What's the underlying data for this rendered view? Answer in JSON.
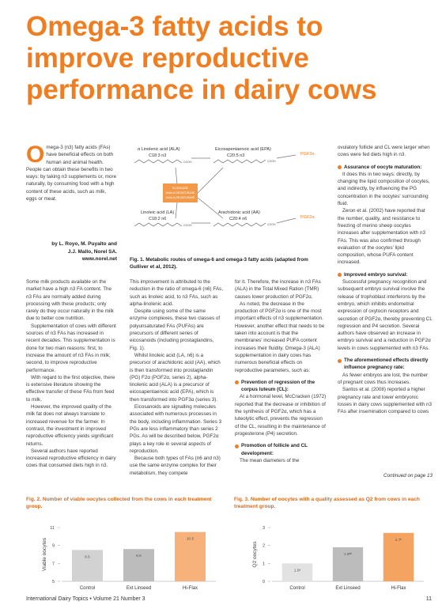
{
  "title": "Omega-3 fatty acids to improve reproductive performance in dairy cows",
  "intro": {
    "drop_cap": "O",
    "text": "mega-3 (n3) fatty acids (FAs) have beneficial effects on both human and animal health. People can obtain these benefits in two ways: by taking n3 supplements or, more naturally, by consuming food with a high content of these acids, such as milk, eggs or meat."
  },
  "authors": [
    "by L. Royo, M. Puyalto and",
    "J.J. Mallo, Norel SA.",
    "www.norel.net"
  ],
  "columns": [
    [
      {
        "text": "Some milk products available on the market have a high n3 FA content. The n3 FAs are normally added during processing with these products; only rarely do they occur naturally in the milk due to better cow nutrition."
      },
      {
        "text": "Supplementation of cows with different sources of n3 FAs has increased in recent decades. This supplementation is done for two main reasons: first, to increase the amount of n3 FAs in milk; second, to improve reproductive performance."
      },
      {
        "text": "With regard to the first objective, there is extensive literature showing the effective transfer of these FAs from feed to milk."
      },
      {
        "text": "However, the improved quality of the milk fat does not always translate to increased revenue for the farmer. In contrast, the investment in improved reproductive efficiency yields significant returns."
      },
      {
        "text": "Several authors have reported increased reproductive efficiency in dairy cows that consumed diets high in n3."
      }
    ],
    [
      {
        "text": "This improvement is attributed to the reduction in the ratio of omega-6 (n6) FAs, such as linoleic acid, to n3 FAs, such as alpha-linolenic acid."
      },
      {
        "text": "Despite using some of the same enzyme complexes, these two classes of polyunsaturated FAs (PUFAs) are precursors of different series of eicosanoids (including prostaglandins, Fig. 1)."
      },
      {
        "text": "Whilst linoleic acid (LA, n6) is a precursor of arachidonic acid (AA), which is then transformed into prostaglandin (PG) F2α (PGF2α, series 2), alpha-linolenic acid (ALA) is a precursor of eicosapentaenoic acid (EPA), which is then transformed into PGF3α (series 3)."
      },
      {
        "text": "Eicosanoids are signalling molecules associated with numerous processes in the body, including inflammation. Series 3 PGs are less inflammatory than series 2 PGs. As will be described below, PGF2α plays a key role in several aspects of reproduction."
      },
      {
        "text": "Because both types of FAs (n6 and n3) use the same enzyme complex for their metabolism, they compete"
      }
    ],
    [
      {
        "text": "for it. Therefore, the increase in n3 FAs (ALA) in the Total Mixed Ration (TMR) causes lower production of PGF2α."
      },
      {
        "text": "As noted, the decrease in the production of PGF2α is one of the most important effects of n3 supplementation. However, another effect that needs to be taken into account is that the membranes' increased PUFA content increases their fluidity. Omega-3 (ALA) supplementation in dairy cows has numerous beneficial effects on reproductive parameters, such as:"
      },
      {
        "heading": "Prevention of regression of the corpus luteum (CL):"
      },
      {
        "text": "At a hormonal level, McCracken (1972) reported that the decrease or inhibition of the synthesis of PGF2α, which has a luteolytic effect, prevents the regression of the CL, resulting in the maintenance of progesterone (P4) secretion."
      },
      {
        "heading": "Promotion of follicle and CL development:"
      },
      {
        "text": "The mean diameters of the"
      }
    ],
    [
      {
        "text": "ovulatory follicle and CL were larger when cows were fed diets high in n3."
      },
      {
        "heading": "Assurance of oocyte maturation:"
      },
      {
        "text": "It does this in two ways: directly, by changing the lipid composition of oocytes, and indirectly, by influencing the PG concentration in the oocytes' surrounding fluid."
      },
      {
        "text": "Zeron et al. (2002) have reported that the number, quality, and resistance to freezing of merino sheep oocytes increases after supplementation with n3 FAs. This was also confirmed through evaluation of the oocytes' lipid composition, whose PUFA content increased."
      },
      {
        "heading": "Improved embryo survival:"
      },
      {
        "text": "Successful pregnancy recognition and subsequent embryo survival involve the release of trophoblast interferons by the embryo, which inhibits endometrial expression of oxytocin receptors and secretion of PGF2α, thereby preventing CL regression and P4 secretion. Several authors have observed an increase in embryo survival and a reduction in PGF2α levels in cows supplemented with n3 FAs."
      },
      {
        "heading": "The aforementioned effects directly influence pregnancy rate:"
      },
      {
        "text": "As fewer embryos are lost, the number of pregnant cows thus increases."
      },
      {
        "text": "Santos et al. (2008) reported a higher pregnancy rate and lower embryonic losses in dairy cows supplemented with n3 FAs after insemination compared to cows"
      }
    ]
  ],
  "continued": "Continued on page 13",
  "figure1": {
    "caption": "Fig. 1. Metabolic routes of omega-6 and omega-3 fatty acids (adapted from Gulliver et al, 2012).",
    "ala": "α Linolenic acid (ALA)",
    "ala_formula": "C18:3 n3",
    "epa": "Eicosapentaenoic acid (EPA)",
    "epa_formula": "C20:5 n3",
    "pgf3": "PGF3α",
    "la": "Linoleic acid (LA)",
    "la_formula": "C18:2 n6",
    "aa": "Arachidonic acid (AA)",
    "aa_formula": "C20:4 n6",
    "pgf2": "PGF2α",
    "cooh": "COOH",
    "enzymes": [
      "ELONGASE",
      "Delta-6-DESATURASE",
      "Delta-5-DESATURASE"
    ]
  },
  "chart_data": [
    {
      "type": "bar",
      "title": "Fig. 2. Number of viable oocytes collected from the cows in each treatment group.",
      "y_label": "Viable oocytes",
      "categories": [
        "Control",
        "Ext Linseed",
        "Hi-Flax"
      ],
      "values": [
        8.5,
        8.6,
        10.5
      ],
      "colors": [
        "#d2d2d2",
        "#bcbcbc",
        "#f6b27a"
      ],
      "ylim": [
        5,
        11
      ],
      "yticks": [
        5,
        7,
        9,
        11
      ]
    },
    {
      "type": "bar",
      "title": "Fig. 3. Number of oocytes with a quality assessed as Q2 from cows in each treatment group.",
      "y_label": "Q2 oocytes",
      "categories": [
        "Control",
        "Ext Linseed",
        "Hi-Flax"
      ],
      "values": [
        1.0,
        1.9,
        2.7
      ],
      "value_labels": [
        "1.0ᵃ",
        "1.9ᵃᵇ",
        "2.7ᵇ"
      ],
      "colors": [
        "#e2e2e2",
        "#bcbcbc",
        "#f4a460"
      ],
      "ylim": [
        0,
        3
      ],
      "yticks": [
        0,
        1,
        2,
        3
      ]
    }
  ],
  "footer": {
    "publication": "International Dairy Topics • Volume 21 Number 3",
    "page": "11"
  }
}
